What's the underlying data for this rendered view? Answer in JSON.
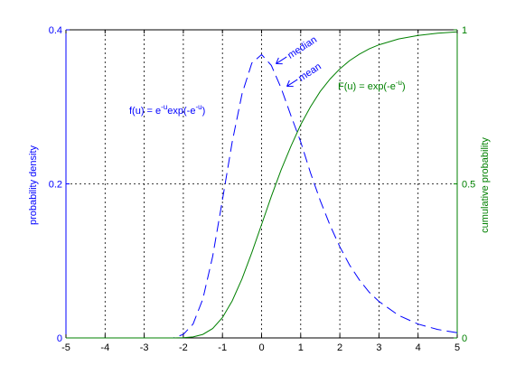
{
  "chart_data": {
    "type": "line",
    "xlim": [
      -5,
      5
    ],
    "ylim_left": [
      0,
      0.4
    ],
    "ylim_right": [
      0,
      1
    ],
    "grid": true,
    "x_ticks": [
      -5,
      -4,
      -3,
      -2,
      -1,
      0,
      1,
      2,
      3,
      4,
      5
    ],
    "y_ticks_left": [
      0,
      0.2,
      0.4
    ],
    "y_ticks_right": [
      0,
      0.5,
      1
    ],
    "ylabel_left": "probability density",
    "ylabel_right": "cumulative probability",
    "colors": {
      "pdf": "#0000ff",
      "cdf": "#008000",
      "axis": "#000000"
    },
    "series": [
      {
        "id": "pdf",
        "axis": "left",
        "style": "dashed",
        "x": [
          -5,
          -4.5,
          -4,
          -3.5,
          -3,
          -2.75,
          -2.5,
          -2.25,
          -2,
          -1.75,
          -1.5,
          -1.25,
          -1,
          -0.75,
          -0.5,
          -0.25,
          0,
          0.25,
          0.5,
          0.75,
          1,
          1.25,
          1.5,
          1.75,
          2,
          2.25,
          2.5,
          2.75,
          3,
          3.5,
          4,
          4.5,
          5
        ],
        "y": [
          0,
          0,
          0,
          0,
          0,
          0.0,
          0.0,
          0.0001,
          0.0046,
          0.0181,
          0.0505,
          0.106,
          0.1794,
          0.2545,
          0.317,
          0.3568,
          0.3679,
          0.3538,
          0.3245,
          0.2886,
          0.2546,
          0.2144,
          0.1784,
          0.1461,
          0.1182,
          0.0946,
          0.0752,
          0.0594,
          0.0474,
          0.0293,
          0.018,
          0.011,
          0.0067
        ]
      },
      {
        "id": "cdf",
        "axis": "right",
        "style": "solid",
        "x": [
          -5,
          -4.5,
          -4,
          -3.5,
          -3,
          -2.75,
          -2.5,
          -2.25,
          -2,
          -1.75,
          -1.5,
          -1.25,
          -1,
          -0.75,
          -0.5,
          -0.25,
          0,
          0.25,
          0.5,
          0.75,
          1,
          1.25,
          1.5,
          1.75,
          2,
          2.25,
          2.5,
          2.75,
          3,
          3.5,
          4,
          4.5,
          5
        ],
        "y": [
          0,
          0,
          0,
          0,
          0,
          0,
          0,
          0,
          0.0006,
          0.0031,
          0.0113,
          0.0305,
          0.066,
          0.1201,
          0.1923,
          0.2769,
          0.3679,
          0.4594,
          0.5452,
          0.6224,
          0.6922,
          0.7502,
          0.8001,
          0.8402,
          0.8734,
          0.9,
          0.9211,
          0.9381,
          0.9514,
          0.9703,
          0.9819,
          0.989,
          0.9933
        ]
      }
    ],
    "annotations": {
      "pdf_label": "f(u) = e",
      "pdf_label_sup1": "-u",
      "pdf_label_mid": "exp(-e",
      "pdf_label_sup2": "-u",
      "pdf_label_end": ")",
      "cdf_label": "F(u) = exp(-e",
      "cdf_label_sup": "-u",
      "cdf_label_end": ")",
      "median_label": "median",
      "mean_label": "mean"
    }
  }
}
